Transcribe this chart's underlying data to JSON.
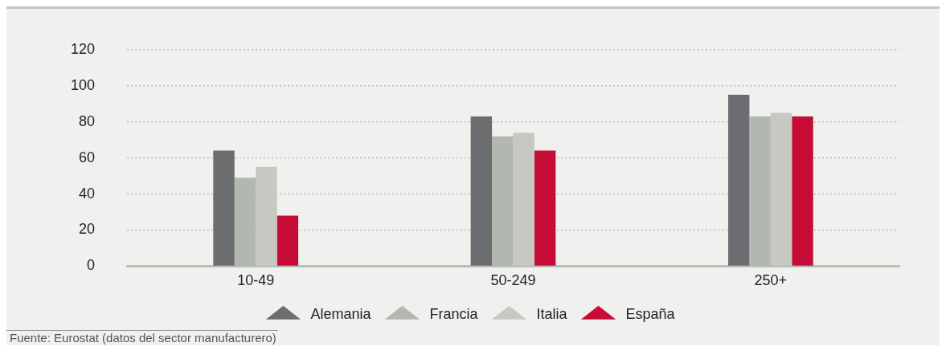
{
  "chart_data": {
    "type": "bar",
    "categories": [
      "10-49",
      "50-249",
      "250+"
    ],
    "series": [
      {
        "name": "Alemania",
        "color": "#6c6d71",
        "values": [
          64,
          83,
          95
        ]
      },
      {
        "name": "Francia",
        "color": "#b2b7b0",
        "values": [
          49,
          72,
          83
        ]
      },
      {
        "name": "Italia",
        "color": "#c6c9c2",
        "values": [
          55,
          74,
          85
        ]
      },
      {
        "name": "España",
        "color": "#c60c37",
        "values": [
          28,
          64,
          83
        ]
      }
    ],
    "ylim": [
      0,
      120
    ],
    "yticks": [
      0,
      20,
      40,
      60,
      80,
      100,
      120
    ],
    "grid": "y",
    "legend": "bottom",
    "annotations": [
      "Fuente: Eurostat (datos del sector manufacturero)"
    ]
  }
}
